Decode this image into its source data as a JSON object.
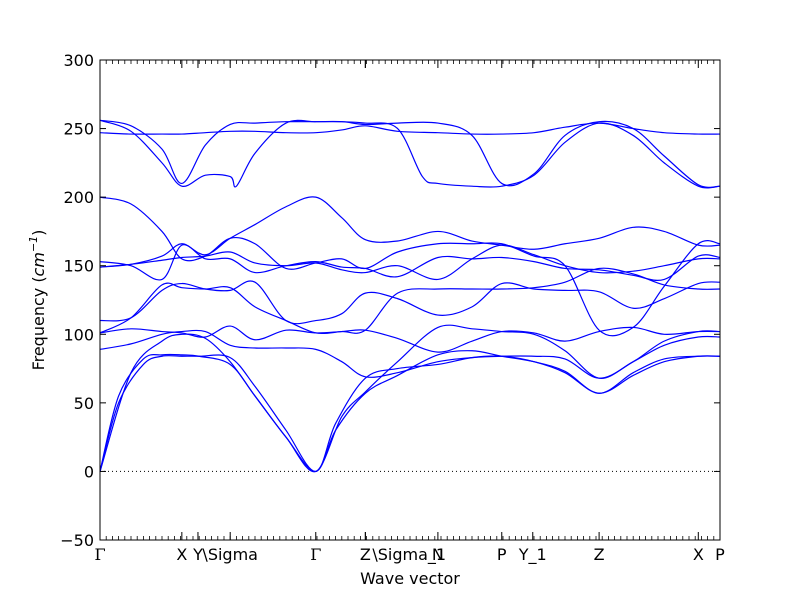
{
  "chart_data": {
    "type": "line",
    "xlabel": "Wave vector",
    "ylabel_prefix": "Frequency (",
    "ylabel_unit_base": "cm",
    "ylabel_unit_exp": "−1",
    "ylabel_suffix": ")",
    "ylim": [
      -50,
      300
    ],
    "yticks": [
      -50,
      0,
      50,
      100,
      150,
      200,
      250,
      300
    ],
    "ytick_labels": [
      "−50",
      "0",
      "50",
      "100",
      "150",
      "200",
      "250",
      "300"
    ],
    "zero_line": "dotted",
    "line_color": "#0000ff",
    "kpoints": [
      {
        "label": "Γ",
        "pos": 0.0
      },
      {
        "label": "X",
        "pos": 1.32
      },
      {
        "label": "Y",
        "pos": 1.58
      },
      {
        "label": "\\Sigma",
        "pos": 2.1
      },
      {
        "label": "Γ",
        "pos": 3.48
      },
      {
        "label": "Z",
        "pos": 4.28
      },
      {
        "label": "\\Sigma_1",
        "pos": 4.28
      },
      {
        "label": "N",
        "pos": 5.45
      },
      {
        "label": "P",
        "pos": 6.48
      },
      {
        "label": "Y_1",
        "pos": 6.98
      },
      {
        "label": "Z",
        "pos": 8.05
      },
      {
        "label": "X",
        "pos": 9.65
      },
      {
        "label": "P",
        "pos": 10.0
      }
    ],
    "xlim": [
      0,
      10.0
    ],
    "series": [
      {
        "x": [
          0,
          0.3,
          0.7,
          1.0,
          1.32,
          1.6,
          2.1,
          2.5,
          3.0,
          3.48,
          3.8,
          4.28,
          4.8,
          5.45,
          6.0,
          6.48,
          7.0,
          7.5,
          8.05,
          8.6,
          9.1,
          9.65,
          10.0
        ],
        "y": [
          0,
          50,
          78,
          84,
          84,
          84,
          83,
          62,
          30,
          0,
          35,
          68,
          75,
          78,
          83,
          84,
          80,
          72,
          57,
          70,
          80,
          84,
          84
        ]
      },
      {
        "x": [
          0,
          0.3,
          0.7,
          1.0,
          1.32,
          1.6,
          2.1,
          2.5,
          3.0,
          3.48,
          3.8,
          4.28,
          4.8,
          5.45,
          6.0,
          6.48,
          7.0,
          7.5,
          8.05,
          8.6,
          9.1,
          9.65,
          10.0
        ],
        "y": [
          0,
          55,
          82,
          85,
          85,
          84,
          78,
          55,
          25,
          0,
          30,
          57,
          70,
          85,
          88,
          84,
          80,
          73,
          57,
          72,
          82,
          84,
          84
        ]
      },
      {
        "x": [
          0,
          0.5,
          1.0,
          1.32,
          1.7,
          2.1,
          2.5,
          3.0,
          3.48,
          3.9,
          4.28,
          4.8,
          5.45,
          6.0,
          6.48,
          7.0,
          7.5,
          8.05,
          8.6,
          9.1,
          9.65,
          10.0
        ],
        "y": [
          0,
          72,
          95,
          100,
          97,
          80,
          55,
          25,
          0,
          40,
          58,
          80,
          105,
          104,
          102,
          100,
          88,
          68,
          80,
          92,
          98,
          98
        ]
      },
      {
        "x": [
          0,
          0.5,
          1.0,
          1.32,
          1.7,
          2.1,
          2.5,
          3.0,
          3.48,
          3.9,
          4.28,
          4.8,
          5.45,
          6.0,
          6.48,
          7.0,
          7.5,
          8.05,
          8.6,
          9.1,
          9.65,
          10.0
        ],
        "y": [
          89,
          93,
          100,
          102,
          102,
          92,
          90,
          90,
          89,
          80,
          69,
          72,
          80,
          83,
          84,
          84,
          82,
          68,
          80,
          95,
          102,
          102
        ]
      },
      {
        "x": [
          0,
          0.5,
          1.0,
          1.32,
          1.7,
          2.1,
          2.5,
          3.0,
          3.48,
          3.9,
          4.28,
          4.8,
          5.45,
          6.0,
          6.48,
          7.0,
          7.5,
          8.05,
          8.6,
          9.1,
          9.65,
          10.0
        ],
        "y": [
          101,
          104,
          102,
          101,
          98,
          106,
          96,
          103,
          101,
          102,
          103,
          97,
          87,
          95,
          102,
          101,
          95,
          102,
          105,
          100,
          102,
          102
        ]
      },
      {
        "x": [
          0,
          0.5,
          1.0,
          1.32,
          1.7,
          2.1,
          2.5,
          3.0,
          3.48,
          3.9,
          4.28,
          4.8,
          5.45,
          6.0,
          6.48,
          7.0,
          7.5,
          8.05,
          8.6,
          9.1,
          9.65,
          10.0
        ],
        "y": [
          110,
          112,
          132,
          137,
          133,
          132,
          138,
          110,
          110,
          115,
          130,
          126,
          114,
          120,
          137,
          133,
          132,
          131,
          119,
          126,
          137,
          138
        ]
      },
      {
        "x": [
          0,
          0.5,
          1.0,
          1.32,
          1.7,
          2.1,
          2.5,
          3.0,
          3.48,
          3.9,
          4.28,
          4.8,
          5.45,
          6.0,
          6.48,
          7.0,
          7.5,
          8.05,
          8.6,
          9.1,
          9.65,
          10.0
        ],
        "y": [
          101,
          112,
          136,
          134,
          133,
          134,
          120,
          110,
          101,
          102,
          103,
          130,
          133,
          133,
          133,
          134,
          138,
          148,
          144,
          136,
          133,
          133
        ]
      },
      {
        "x": [
          0,
          0.5,
          1.0,
          1.32,
          1.7,
          2.1,
          2.5,
          3.0,
          3.48,
          3.9,
          4.28,
          4.8,
          5.45,
          6.0,
          6.48,
          7.0,
          7.5,
          8.05,
          8.6,
          9.1,
          9.65,
          10.0
        ],
        "y": [
          153,
          150,
          140,
          165,
          155,
          155,
          145,
          150,
          153,
          149,
          148,
          142,
          156,
          155,
          156,
          153,
          148,
          147,
          143,
          140,
          157,
          156
        ]
      },
      {
        "x": [
          0,
          0.5,
          1.0,
          1.32,
          1.7,
          2.1,
          2.5,
          3.0,
          3.48,
          3.9,
          4.28,
          4.8,
          5.45,
          6.0,
          6.48,
          7.0,
          7.5,
          8.05,
          8.6,
          9.1,
          9.65,
          10.0
        ],
        "y": [
          149,
          151,
          154,
          156,
          157,
          160,
          152,
          150,
          152,
          147,
          145,
          150,
          140,
          155,
          165,
          158,
          150,
          145,
          146,
          150,
          155,
          155
        ]
      },
      {
        "x": [
          0,
          0.5,
          1.0,
          1.32,
          1.7,
          2.1,
          2.5,
          3.0,
          3.48,
          3.9,
          4.28,
          4.8,
          5.45,
          6.0,
          6.48,
          7.0,
          7.5,
          8.05,
          8.6,
          9.1,
          9.65,
          10.0
        ],
        "y": [
          200,
          195,
          175,
          155,
          157,
          170,
          166,
          148,
          152,
          155,
          148,
          160,
          166,
          166,
          166,
          157,
          150,
          103,
          105,
          135,
          166,
          166
        ]
      },
      {
        "x": [
          0,
          0.5,
          1.0,
          1.32,
          1.7,
          2.1,
          2.5,
          3.0,
          3.48,
          3.9,
          4.28,
          4.8,
          5.45,
          6.0,
          6.48,
          7.0,
          7.5,
          8.05,
          8.6,
          9.1,
          9.65,
          10.0
        ],
        "y": [
          149,
          151,
          157,
          166,
          158,
          170,
          180,
          193,
          200,
          185,
          169,
          168,
          175,
          168,
          165,
          162,
          166,
          170,
          178,
          175,
          165,
          165
        ]
      },
      {
        "x": [
          0,
          0.5,
          1.0,
          1.32,
          1.7,
          2.1,
          2.2,
          2.5,
          3.0,
          3.48,
          3.9,
          4.28,
          4.8,
          5.2,
          5.45,
          6.0,
          6.48,
          7.0,
          7.5,
          8.05,
          8.6,
          9.1,
          9.65,
          10.0
        ],
        "y": [
          256,
          248,
          225,
          208,
          216,
          215,
          208,
          232,
          254,
          255,
          255,
          254,
          250,
          215,
          210,
          208,
          208,
          216,
          240,
          254,
          245,
          225,
          208,
          208
        ]
      },
      {
        "x": [
          0,
          0.5,
          1.0,
          1.32,
          1.7,
          2.1,
          2.5,
          3.0,
          3.48,
          3.9,
          4.28,
          4.8,
          5.45,
          6.0,
          6.48,
          7.0,
          7.5,
          8.05,
          8.6,
          9.1,
          9.65,
          10.0
        ],
        "y": [
          256,
          252,
          235,
          210,
          238,
          253,
          254,
          255,
          255,
          255,
          253,
          254,
          254,
          245,
          210,
          217,
          245,
          255,
          250,
          230,
          209,
          208
        ]
      },
      {
        "x": [
          0,
          0.5,
          1.0,
          1.32,
          1.7,
          2.1,
          2.5,
          3.0,
          3.48,
          3.9,
          4.28,
          4.8,
          5.45,
          6.0,
          6.48,
          7.0,
          7.5,
          8.05,
          8.6,
          9.1,
          9.65,
          10.0
        ],
        "y": [
          247,
          246,
          246,
          246,
          247,
          248,
          248,
          247,
          247,
          249,
          252,
          248,
          247,
          246,
          246,
          247,
          251,
          254,
          250,
          247,
          246,
          246
        ]
      }
    ]
  }
}
